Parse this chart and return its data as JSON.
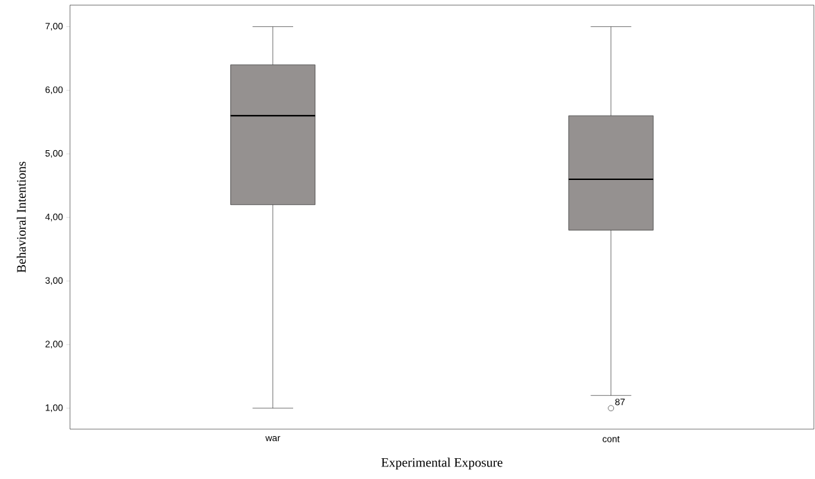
{
  "chart_data": {
    "type": "box",
    "xlabel": "Experimental Exposure",
    "ylabel": "Behavioral Intentions",
    "categories": [
      "war",
      "cont"
    ],
    "boxes": [
      {
        "low": 1.0,
        "q1": 4.2,
        "median": 5.6,
        "q3": 6.4,
        "high": 7.0
      },
      {
        "low": 1.2,
        "q1": 3.8,
        "median": 4.6,
        "q3": 5.6,
        "high": 7.0,
        "outliers": [
          1.0
        ]
      }
    ],
    "color": "#959190",
    "ylim": [
      0.67,
      7.34
    ],
    "yticks": [
      {
        "value": 1,
        "label": "1,00"
      },
      {
        "value": 2,
        "label": "2,00"
      },
      {
        "value": 3,
        "label": "3,00"
      },
      {
        "value": 4,
        "label": "4,00"
      },
      {
        "value": 5,
        "label": "5,00"
      },
      {
        "value": 6,
        "label": "6,00"
      },
      {
        "value": 7,
        "label": "7,00"
      }
    ],
    "grid": false,
    "annotations": [
      "87"
    ]
  }
}
